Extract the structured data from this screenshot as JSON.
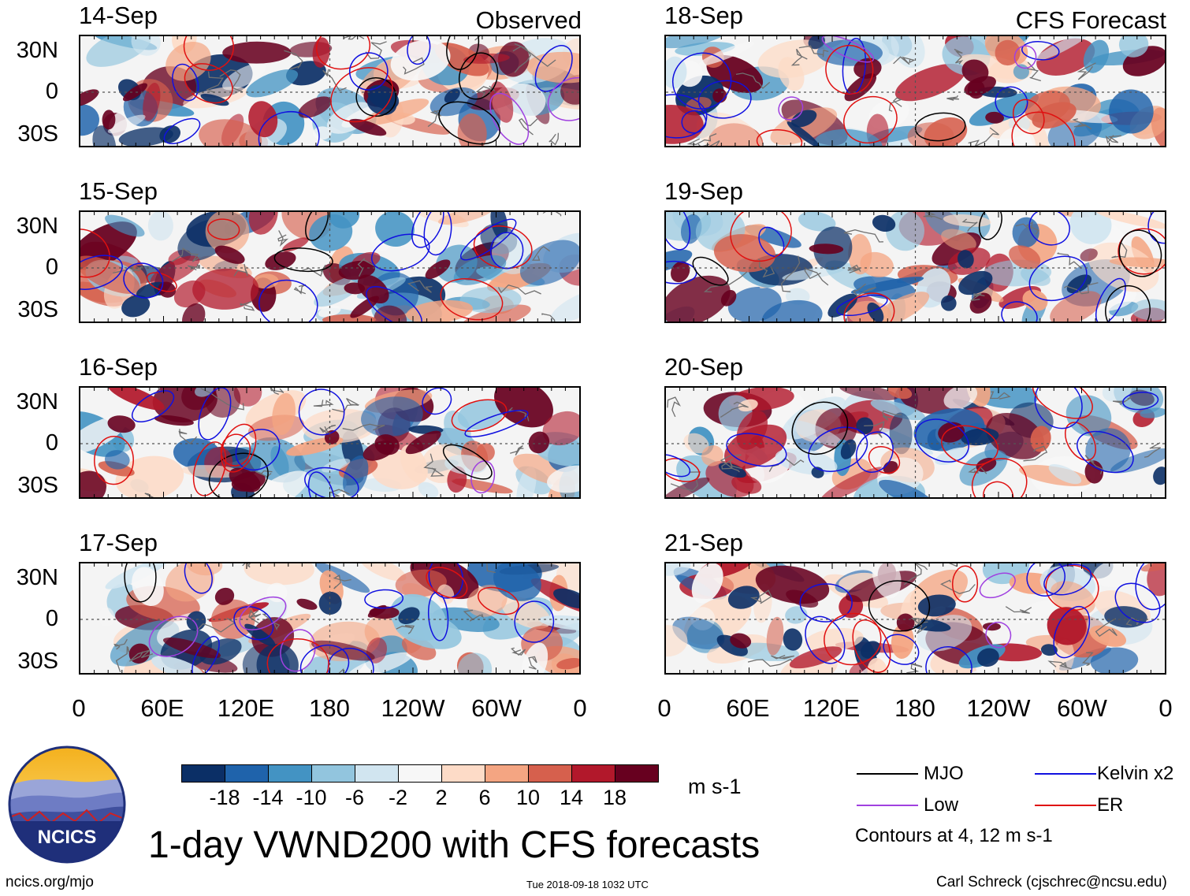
{
  "title": "1-day VWND200 with CFS forecasts",
  "columns": {
    "observed": "Observed",
    "forecast": "CFS Forecast"
  },
  "observed_dates": [
    "14-Sep",
    "15-Sep",
    "16-Sep",
    "17-Sep"
  ],
  "forecast_dates": [
    "18-Sep",
    "19-Sep",
    "20-Sep",
    "21-Sep"
  ],
  "lat_labels": [
    "30N",
    "0",
    "30S"
  ],
  "lon_labels": [
    "0",
    "60E",
    "120E",
    "180",
    "120W",
    "60W",
    "0"
  ],
  "colorbar": {
    "colors": [
      "#0b2f66",
      "#1f63ab",
      "#4393c3",
      "#92c5de",
      "#d1e5f0",
      "#f7f7f7",
      "#fddbc7",
      "#f4a582",
      "#d6604d",
      "#b2182b",
      "#67001f"
    ],
    "labels": [
      "-18",
      "-14",
      "-10",
      "-6",
      "-2",
      "2",
      "6",
      "10",
      "14",
      "18"
    ],
    "units": "m s-1"
  },
  "legend": {
    "items": [
      {
        "label": "MJO",
        "color": "#000000"
      },
      {
        "label": "Kelvin x2",
        "color": "#1010e0"
      },
      {
        "label": "Low",
        "color": "#a040e0"
      },
      {
        "label": "ER",
        "color": "#e01010"
      }
    ],
    "note": "Contours at 4, 12 m s-1"
  },
  "logo": {
    "text": "NCICS"
  },
  "footer": {
    "url": "ncics.org/mjo",
    "timestamp": "Tue 2018-09-18 1032 UTC",
    "credit": "Carl Schreck (cjschrec@ncsu.edu)"
  }
}
